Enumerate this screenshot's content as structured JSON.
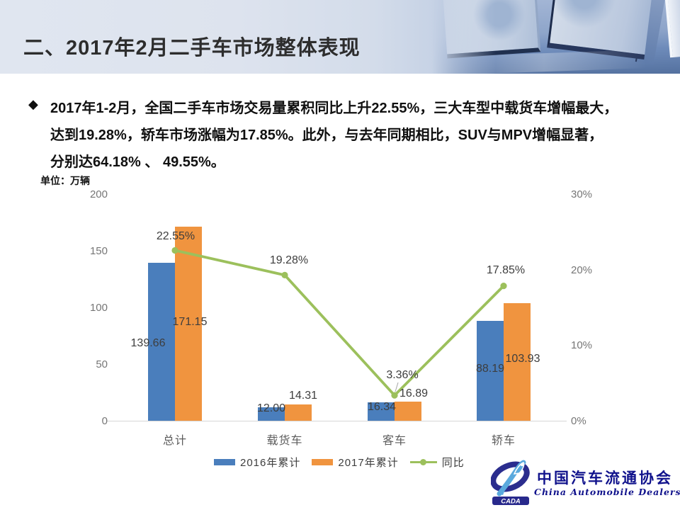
{
  "slide_title": "二、2017年2月二手车市场整体表现",
  "summary": {
    "bullet_icon": "◆",
    "line1": "2017年1-2月，全国二手车市场交易量累积同比上升22.55%，三大车型中载货车增幅最大，",
    "line2": "达到19.28%，轿车市场涨幅为17.85%。此外，与去年同期相比，SUV与MPV增幅显著，",
    "line3": "分别达64.18% 、 49.55%。"
  },
  "unit_label": "单位：万辆",
  "chart_data": {
    "type": "bar",
    "subtype": "bar+line combo, dual axis",
    "categories": [
      "总计",
      "载货车",
      "客车",
      "轿车"
    ],
    "series": [
      {
        "name": "2016年累计",
        "kind": "bar",
        "color": "#4a7ebc",
        "axis": "left",
        "values": [
          139.66,
          12.0,
          16.34,
          88.19
        ],
        "labels": [
          "139.66",
          "12.00",
          "16.34",
          "88.19"
        ]
      },
      {
        "name": "2017年累计",
        "kind": "bar",
        "color": "#f0943f",
        "axis": "left",
        "values": [
          171.15,
          14.31,
          16.89,
          103.93
        ],
        "labels": [
          "171.15",
          "14.31",
          "16.89",
          "103.93"
        ]
      },
      {
        "name": "同比",
        "kind": "line",
        "color": "#9cc05c",
        "axis": "right",
        "values": [
          22.55,
          19.28,
          3.36,
          17.85
        ],
        "labels": [
          "22.55%",
          "19.28%",
          "3.36%",
          "17.85%"
        ]
      }
    ],
    "left_axis": {
      "title": "万辆",
      "ticks": [
        200,
        150,
        100,
        50,
        0
      ],
      "min": 0,
      "max": 200
    },
    "right_axis": {
      "tick_labels": [
        "30%",
        "20%",
        "10%",
        "0%"
      ],
      "tick_values": [
        30,
        20,
        10,
        0
      ],
      "min": 0,
      "max": 30
    },
    "legend": [
      "2016年累计",
      "2017年累计",
      "同比"
    ],
    "legend_position": "bottom",
    "grid": false
  },
  "legend": {
    "item1": "2016年累计",
    "item2": "2017年累计",
    "item3": "同比"
  },
  "logo": {
    "badge": "CADA",
    "name_cn": "中国汽车流通协会",
    "name_en": "China Automobile Dealers Association"
  },
  "colors": {
    "bar_2016": "#4a7ebc",
    "bar_2017": "#f0943f",
    "line_yoy": "#9cc05c",
    "axis_text": "#767676",
    "data_label_text": "#3d3d3d",
    "logo_navy": "#10128c",
    "title_text": "#2d2d2d"
  }
}
